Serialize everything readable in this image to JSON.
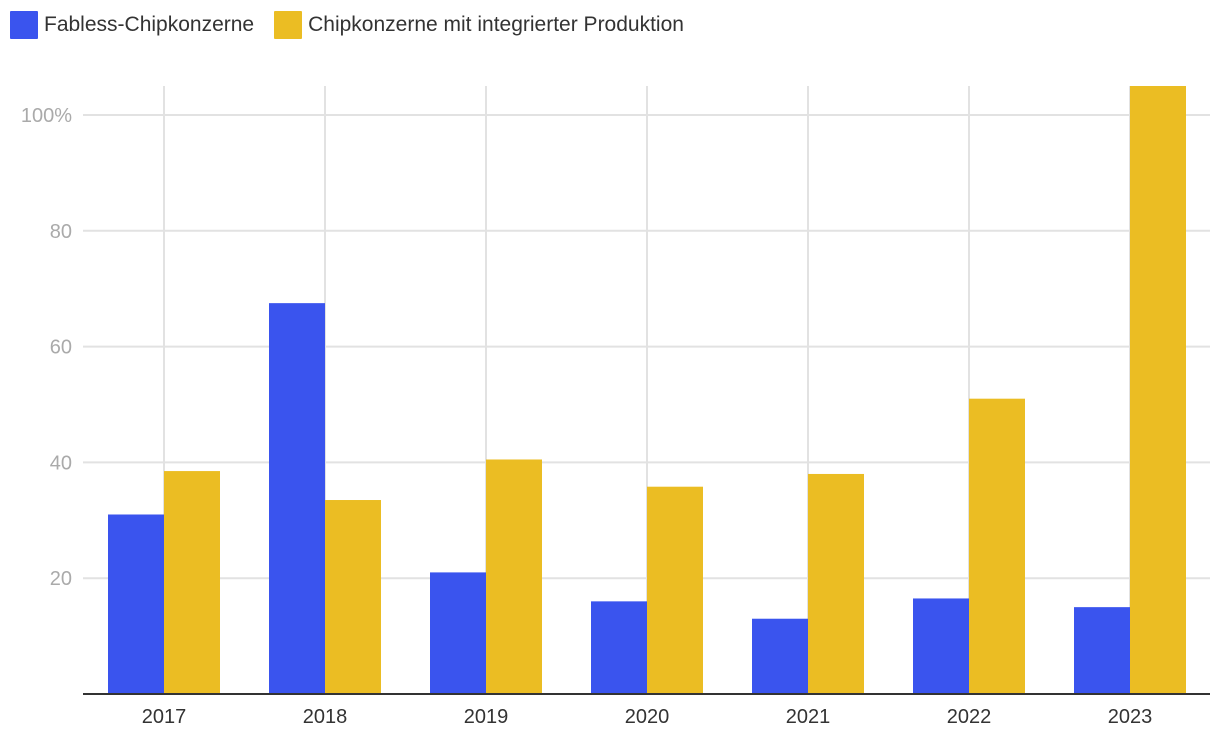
{
  "chart_data": {
    "type": "bar",
    "categories": [
      "2017",
      "2018",
      "2019",
      "2020",
      "2021",
      "2022",
      "2023"
    ],
    "series": [
      {
        "name": "Fabless-Chipkonzerne",
        "values": [
          31,
          67.5,
          21,
          16,
          13,
          16.5,
          15
        ],
        "color": "#3a54ee"
      },
      {
        "name": "Chipkonzerne mit integrierter Produktion",
        "values": [
          38.5,
          33.5,
          40.5,
          35.8,
          38,
          51,
          105
        ],
        "color": "#ebbd23"
      }
    ],
    "yticks": [
      {
        "value": 20,
        "label": "20"
      },
      {
        "value": 40,
        "label": "40"
      },
      {
        "value": 60,
        "label": "60"
      },
      {
        "value": 80,
        "label": "80"
      },
      {
        "value": 100,
        "label": "100%"
      }
    ],
    "ylim": [
      0,
      105
    ],
    "grid": true,
    "legend": "top-left",
    "title": "",
    "xlabel": "",
    "ylabel": ""
  }
}
